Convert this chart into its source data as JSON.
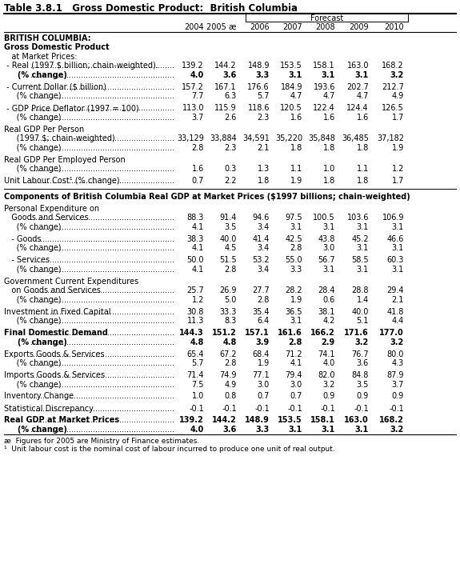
{
  "title": "Table 3.8.1   Gross Domestic Product:  British Columbia",
  "col_headers": [
    "2004",
    "2005 æ",
    "2006",
    "2007",
    "2008",
    "2009",
    "2010"
  ],
  "sections": [
    {
      "type": "section_header",
      "text": "BRITISH COLUMBIA:",
      "bold": true
    },
    {
      "type": "section_header",
      "text": "Gross Domestic Product",
      "bold": true
    },
    {
      "type": "section_header",
      "text": "   at Market Prices:",
      "bold": false
    },
    {
      "type": "data_row",
      "label": " - Real (1997 $ billion; chain-weighted).",
      "bold": false,
      "values": [
        "139.2",
        "144.2",
        "148.9",
        "153.5",
        "158.1",
        "163.0",
        "168.2"
      ]
    },
    {
      "type": "data_row",
      "label": "     (% change)",
      "bold": true,
      "values": [
        "4.0",
        "3.6",
        "3.3",
        "3.1",
        "3.1",
        "3.1",
        "3.2"
      ]
    },
    {
      "type": "blank"
    },
    {
      "type": "data_row",
      "label": " - Current Dollar ($ billion)",
      "bold": false,
      "values": [
        "157.2",
        "167.1",
        "176.6",
        "184.9",
        "193.6",
        "202.7",
        "212.7"
      ]
    },
    {
      "type": "data_row",
      "label": "     (% change)",
      "bold": false,
      "values": [
        "7.7",
        "6.3",
        "5.7",
        "4.7",
        "4.7",
        "4.7",
        "4.9"
      ]
    },
    {
      "type": "blank"
    },
    {
      "type": "data_row",
      "label": " - GDP Price Deflator (1997 = 100)",
      "bold": false,
      "values": [
        "113.0",
        "115.9",
        "118.6",
        "120.5",
        "122.4",
        "124.4",
        "126.5"
      ]
    },
    {
      "type": "data_row",
      "label": "     (% change)",
      "bold": false,
      "values": [
        "3.7",
        "2.6",
        "2.3",
        "1.6",
        "1.6",
        "1.6",
        "1.7"
      ]
    },
    {
      "type": "blank"
    },
    {
      "type": "section_header",
      "text": "Real GDP Per Person",
      "bold": false
    },
    {
      "type": "data_row",
      "label": "     (1997 $; chain-weighted)",
      "bold": false,
      "values": [
        "33,129",
        "33,884",
        "34,591",
        "35,220",
        "35,848",
        "36,485",
        "37,182"
      ]
    },
    {
      "type": "data_row",
      "label": "     (% change)",
      "bold": false,
      "values": [
        "2.8",
        "2.3",
        "2.1",
        "1.8",
        "1.8",
        "1.8",
        "1.9"
      ]
    },
    {
      "type": "blank"
    },
    {
      "type": "section_header",
      "text": "Real GDP Per Employed Person",
      "bold": false
    },
    {
      "type": "data_row",
      "label": "     (% change)",
      "bold": false,
      "values": [
        "1.6",
        "0.3",
        "1.3",
        "1.1",
        "1.0",
        "1.1",
        "1.2"
      ]
    },
    {
      "type": "blank"
    },
    {
      "type": "data_row",
      "label": "Unit Labour Cost¹ (% change)",
      "bold": false,
      "values": [
        "0.7",
        "2.2",
        "1.8",
        "1.9",
        "1.8",
        "1.8",
        "1.7"
      ]
    }
  ],
  "sections2": [
    {
      "type": "section_header",
      "text": "Components of British Columbia Real GDP at Market Prices ($1997 billions; chain-weighted)",
      "bold": true
    },
    {
      "type": "blank"
    },
    {
      "type": "section_header",
      "text": "Personal Expenditure on",
      "bold": false
    },
    {
      "type": "data_row",
      "label": "   Goods and Services",
      "bold": false,
      "values": [
        "88.3",
        "91.4",
        "94.6",
        "97.5",
        "100.5",
        "103.6",
        "106.9"
      ]
    },
    {
      "type": "data_row",
      "label": "     (% change)",
      "bold": false,
      "values": [
        "4.1",
        "3.5",
        "3.4",
        "3.1",
        "3.1",
        "3.1",
        "3.1"
      ]
    },
    {
      "type": "blank"
    },
    {
      "type": "data_row",
      "label": "   - Goods",
      "bold": false,
      "values": [
        "38.3",
        "40.0",
        "41.4",
        "42.5",
        "43.8",
        "45.2",
        "46.6"
      ]
    },
    {
      "type": "data_row",
      "label": "     (% change)",
      "bold": false,
      "values": [
        "4.1",
        "4.5",
        "3.4",
        "2.8",
        "3.0",
        "3.1",
        "3.1"
      ]
    },
    {
      "type": "blank"
    },
    {
      "type": "data_row",
      "label": "   - Services",
      "bold": false,
      "values": [
        "50.0",
        "51.5",
        "53.2",
        "55.0",
        "56.7",
        "58.5",
        "60.3"
      ]
    },
    {
      "type": "data_row",
      "label": "     (% change)",
      "bold": false,
      "values": [
        "4.1",
        "2.8",
        "3.4",
        "3.3",
        "3.1",
        "3.1",
        "3.1"
      ]
    },
    {
      "type": "blank"
    },
    {
      "type": "section_header",
      "text": "Government Current Expenditures",
      "bold": false
    },
    {
      "type": "data_row",
      "label": "   on Goods and Services",
      "bold": false,
      "values": [
        "25.7",
        "26.9",
        "27.7",
        "28.2",
        "28.4",
        "28.8",
        "29.4"
      ]
    },
    {
      "type": "data_row",
      "label": "     (% change)",
      "bold": false,
      "values": [
        "1.2",
        "5.0",
        "2.8",
        "1.9",
        "0.6",
        "1.4",
        "2.1"
      ]
    },
    {
      "type": "blank"
    },
    {
      "type": "data_row",
      "label": "Investment in Fixed Capital",
      "bold": false,
      "values": [
        "30.8",
        "33.3",
        "35.4",
        "36.5",
        "38.1",
        "40.0",
        "41.8"
      ]
    },
    {
      "type": "data_row",
      "label": "     (% change)",
      "bold": false,
      "values": [
        "11.3",
        "8.3",
        "6.4",
        "3.1",
        "4.2",
        "5.1",
        "4.4"
      ]
    },
    {
      "type": "blank"
    },
    {
      "type": "data_row",
      "label": "Final Domestic Demand",
      "bold": true,
      "values": [
        "144.3",
        "151.2",
        "157.1",
        "161.6",
        "166.2",
        "171.6",
        "177.0"
      ]
    },
    {
      "type": "data_row",
      "label": "     (% change)",
      "bold": true,
      "values": [
        "4.8",
        "4.8",
        "3.9",
        "2.8",
        "2.9",
        "3.2",
        "3.2"
      ]
    },
    {
      "type": "blank"
    },
    {
      "type": "data_row",
      "label": "Exports Goods & Services",
      "bold": false,
      "values": [
        "65.4",
        "67.2",
        "68.4",
        "71.2",
        "74.1",
        "76.7",
        "80.0"
      ]
    },
    {
      "type": "data_row",
      "label": "     (% change)",
      "bold": false,
      "values": [
        "5.7",
        "2.8",
        "1.9",
        "4.1",
        "4.0",
        "3.6",
        "4.3"
      ]
    },
    {
      "type": "blank"
    },
    {
      "type": "data_row",
      "label": "Imports Goods & Services",
      "bold": false,
      "values": [
        "71.4",
        "74.9",
        "77.1",
        "79.4",
        "82.0",
        "84.8",
        "87.9"
      ]
    },
    {
      "type": "data_row",
      "label": "     (% change)",
      "bold": false,
      "values": [
        "7.5",
        "4.9",
        "3.0",
        "3.0",
        "3.2",
        "3.5",
        "3.7"
      ]
    },
    {
      "type": "blank"
    },
    {
      "type": "data_row",
      "label": "Inventory Change",
      "bold": false,
      "values": [
        "1.0",
        "0.8",
        "0.7",
        "0.7",
        "0.9",
        "0.9",
        "0.9"
      ]
    },
    {
      "type": "blank"
    },
    {
      "type": "data_row",
      "label": "Statistical Discrepancy",
      "bold": false,
      "values": [
        "-0.1",
        "-0.1",
        "-0.1",
        "-0.1",
        "-0.1",
        "-0.1",
        "-0.1"
      ]
    },
    {
      "type": "blank"
    },
    {
      "type": "data_row",
      "label": "Real GDP at Market Prices",
      "bold": true,
      "values": [
        "139.2",
        "144.2",
        "148.9",
        "153.5",
        "158.1",
        "163.0",
        "168.2"
      ]
    },
    {
      "type": "data_row",
      "label": "     (% change)",
      "bold": true,
      "values": [
        "4.0",
        "3.6",
        "3.3",
        "3.1",
        "3.1",
        "3.1",
        "3.2"
      ]
    }
  ],
  "footnotes": [
    "æ  Figures for 2005 are Ministry of Finance estimates.",
    "¹  Unit labour cost is the nominal cost of labour incurred to produce one unit of real output."
  ]
}
